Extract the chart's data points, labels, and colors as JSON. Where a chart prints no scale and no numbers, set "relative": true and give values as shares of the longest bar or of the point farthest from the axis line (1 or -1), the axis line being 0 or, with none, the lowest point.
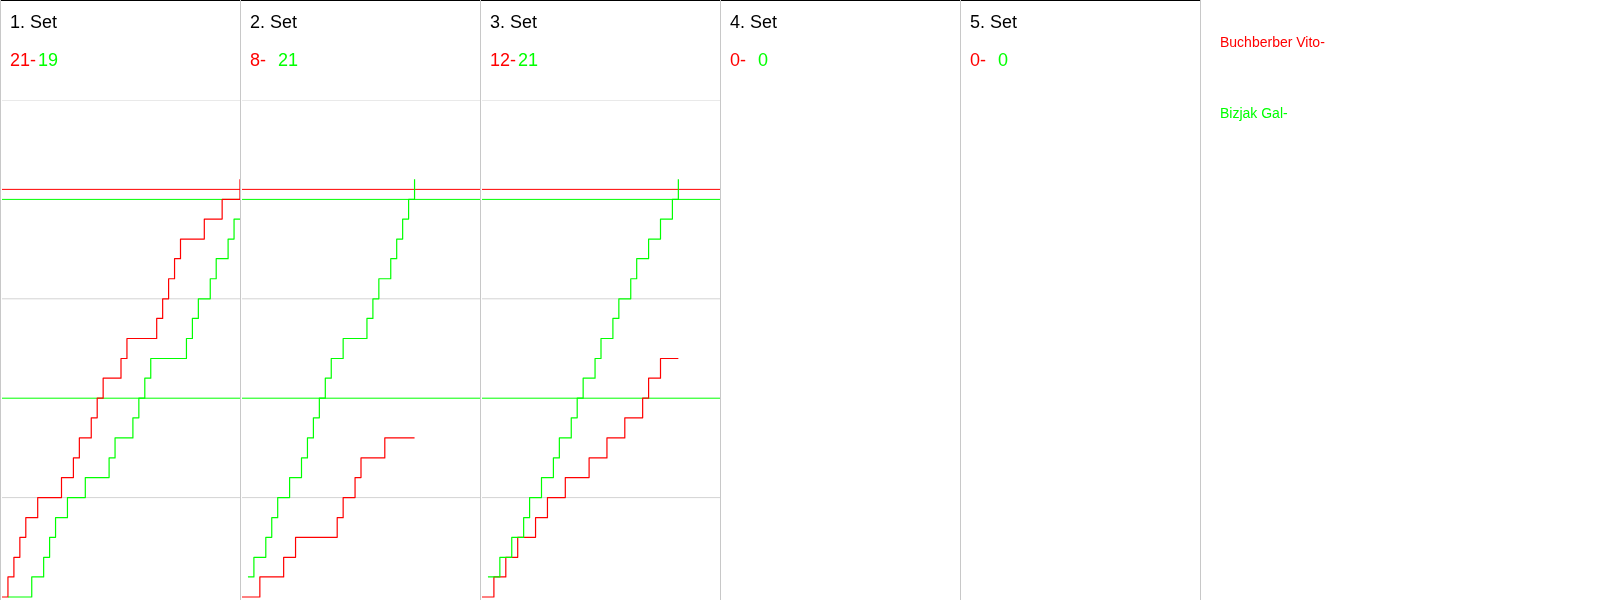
{
  "chart_data": [
    {
      "type": "step",
      "title": "1. Set",
      "legend": "right",
      "relative": true,
      "annotations": [
        "21-",
        "19"
      ],
      "categories": [
        null,
        null,
        null,
        null,
        null,
        null,
        null,
        null,
        null,
        null,
        null,
        null,
        null,
        null,
        null,
        null,
        null,
        null,
        null,
        null,
        null,
        null,
        null,
        null,
        null,
        null,
        null,
        null,
        null,
        null,
        null,
        null,
        null,
        null,
        null,
        null,
        null,
        null,
        null,
        null,
        null
      ],
      "series": [
        {
          "name": "Buchberber Vito-",
          "color": "#ff0000",
          "values": [
            0,
            0.048,
            0.095,
            0.143,
            0.19,
            0.19,
            0.238,
            0.238,
            0.238,
            0.238,
            0.286,
            0.286,
            0.333,
            0.381,
            0.381,
            0.429,
            0.476,
            0.524,
            0.524,
            0.524,
            0.571,
            0.619,
            0.619,
            0.619,
            0.619,
            0.619,
            0.667,
            0.714,
            0.762,
            0.81,
            0.857,
            0.857,
            0.857,
            0.857,
            0.905,
            0.905,
            0.905,
            0.952,
            0.952,
            0.952,
            1
          ]
        },
        {
          "name": "Bizjak Gal-",
          "color": "#00ff00",
          "values": [
            null,
            0,
            0,
            0,
            0,
            0.048,
            0.048,
            0.095,
            0.143,
            0.19,
            0.19,
            0.238,
            0.238,
            0.238,
            0.286,
            0.286,
            0.286,
            0.286,
            0.333,
            0.381,
            0.381,
            0.381,
            0.429,
            0.476,
            0.524,
            0.571,
            0.571,
            0.571,
            0.571,
            0.571,
            0.571,
            0.619,
            0.667,
            0.714,
            0.714,
            0.762,
            0.81,
            0.81,
            0.857,
            0.905,
            0.905
          ]
        }
      ],
      "ref_lines": [
        {
          "axis": "y",
          "value": 0.238,
          "color": "#d3d3d3"
        },
        {
          "axis": "y",
          "value": 0.714,
          "color": "#d3d3d3"
        },
        {
          "axis": "y",
          "value": 1.19,
          "color": "#d3d3d3"
        },
        {
          "axis": "y",
          "value": 0.976,
          "color": "#ff0000"
        },
        {
          "axis": "y",
          "value": 0.952,
          "color": "#00ff00"
        },
        {
          "axis": "y",
          "value": 0.476,
          "color": "#00ff00"
        }
      ]
    },
    {
      "type": "step",
      "title": "2. Set",
      "relative": true,
      "annotations": [
        "8-",
        "21"
      ],
      "categories": [
        null,
        null,
        null,
        null,
        null,
        null,
        null,
        null,
        null,
        null,
        null,
        null,
        null,
        null,
        null,
        null,
        null,
        null,
        null,
        null,
        null,
        null,
        null,
        null,
        null,
        null,
        null,
        null,
        null,
        null,
        null,
        null,
        null,
        null,
        null,
        null,
        null,
        null,
        null,
        null,
        null
      ],
      "series": [
        {
          "color": "#ff0000",
          "values": [
            0,
            0,
            0,
            0.048,
            0.048,
            0.048,
            0.048,
            0.095,
            0.095,
            0.143,
            0.143,
            0.143,
            0.143,
            0.143,
            0.143,
            0.143,
            0.19,
            0.238,
            0.238,
            0.286,
            0.333,
            0.333,
            0.333,
            0.333,
            0.381,
            0.381,
            0.381,
            0.381,
            0.381,
            0.381,
            null,
            null,
            null,
            null,
            null,
            null,
            null,
            null,
            null,
            null,
            null
          ]
        },
        {
          "color": "#00ff00",
          "values": [
            null,
            0.048,
            0.095,
            0.095,
            0.143,
            0.19,
            0.238,
            0.238,
            0.286,
            0.286,
            0.333,
            0.381,
            0.429,
            0.476,
            0.524,
            0.571,
            0.571,
            0.619,
            0.619,
            0.619,
            0.619,
            0.667,
            0.714,
            0.762,
            0.762,
            0.81,
            0.857,
            0.905,
            0.952,
            1,
            null,
            null,
            null,
            null,
            null,
            null,
            null,
            null,
            null,
            null,
            null
          ]
        }
      ],
      "ref_lines": [
        {
          "axis": "y",
          "value": 0.238,
          "color": "#d3d3d3"
        },
        {
          "axis": "y",
          "value": 0.714,
          "color": "#d3d3d3"
        },
        {
          "axis": "y",
          "value": 1.19,
          "color": "#d3d3d3"
        },
        {
          "axis": "y",
          "value": 0.976,
          "color": "#ff0000"
        },
        {
          "axis": "y",
          "value": 0.952,
          "color": "#00ff00"
        },
        {
          "axis": "y",
          "value": 0.476,
          "color": "#00ff00"
        }
      ]
    },
    {
      "type": "step",
      "title": "3. Set",
      "relative": true,
      "annotations": [
        "12-",
        "21"
      ],
      "categories": [
        null,
        null,
        null,
        null,
        null,
        null,
        null,
        null,
        null,
        null,
        null,
        null,
        null,
        null,
        null,
        null,
        null,
        null,
        null,
        null,
        null,
        null,
        null,
        null,
        null,
        null,
        null,
        null,
        null,
        null,
        null,
        null,
        null,
        null,
        null,
        null,
        null,
        null,
        null,
        null,
        null
      ],
      "series": [
        {
          "color": "#ff0000",
          "values": [
            0,
            0,
            0.048,
            0.048,
            0.095,
            0.095,
            0.143,
            0.143,
            0.143,
            0.19,
            0.19,
            0.238,
            0.238,
            0.238,
            0.286,
            0.286,
            0.286,
            0.286,
            0.333,
            0.333,
            0.333,
            0.381,
            0.381,
            0.381,
            0.429,
            0.429,
            0.429,
            0.476,
            0.524,
            0.524,
            0.571,
            0.571,
            0.571,
            0.571,
            null,
            null,
            null,
            null,
            null,
            null,
            null
          ]
        },
        {
          "color": "#00ff00",
          "values": [
            null,
            0.048,
            0.048,
            0.095,
            0.095,
            0.143,
            0.143,
            0.19,
            0.238,
            0.238,
            0.286,
            0.286,
            0.333,
            0.381,
            0.381,
            0.429,
            0.476,
            0.524,
            0.524,
            0.571,
            0.619,
            0.619,
            0.667,
            0.714,
            0.714,
            0.762,
            0.81,
            0.81,
            0.857,
            0.857,
            0.905,
            0.905,
            0.952,
            1,
            null,
            null,
            null,
            null,
            null,
            null,
            null
          ]
        }
      ],
      "ref_lines": [
        {
          "axis": "y",
          "value": 0.238,
          "color": "#d3d3d3"
        },
        {
          "axis": "y",
          "value": 0.714,
          "color": "#d3d3d3"
        },
        {
          "axis": "y",
          "value": 1.19,
          "color": "#d3d3d3"
        },
        {
          "axis": "y",
          "value": 0.976,
          "color": "#ff0000"
        },
        {
          "axis": "y",
          "value": 0.952,
          "color": "#00ff00"
        },
        {
          "axis": "y",
          "value": 0.476,
          "color": "#00ff00"
        }
      ]
    },
    {
      "type": "other",
      "title": "4. Set",
      "annotations": [
        "0-",
        "0"
      ],
      "series": [
        {
          "color": "#ff0000"
        },
        {
          "color": "#00ff00"
        }
      ]
    },
    {
      "type": "other",
      "title": "5. Set",
      "annotations": [
        "0-",
        "0"
      ],
      "series": [
        {
          "color": "#ff0000"
        },
        {
          "color": "#00ff00"
        }
      ]
    }
  ]
}
